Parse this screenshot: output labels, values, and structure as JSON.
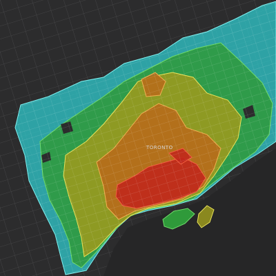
{
  "map": {
    "city_label": "TORONTO"
  }
}
